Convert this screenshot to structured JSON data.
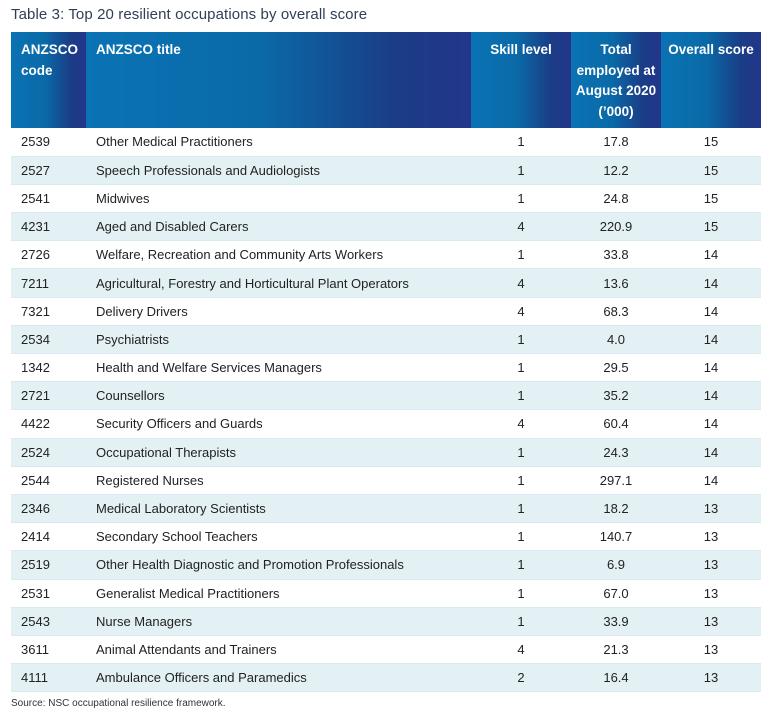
{
  "title": "Table 3: Top 20 resilient occupations by overall score",
  "headers": {
    "code": "ANZSCO code",
    "title": "ANZSCO title",
    "skill": "Skill level",
    "employed": "Total employed at August 2020 (’000)",
    "score": "Overall score"
  },
  "rows": [
    {
      "code": "2539",
      "title": "Other Medical Practitioners",
      "skill": "1",
      "employed": "17.8",
      "score": "15"
    },
    {
      "code": "2527",
      "title": "Speech Professionals and Audiologists",
      "skill": "1",
      "employed": "12.2",
      "score": "15"
    },
    {
      "code": "2541",
      "title": "Midwives",
      "skill": "1",
      "employed": "24.8",
      "score": "15"
    },
    {
      "code": "4231",
      "title": "Aged and Disabled Carers",
      "skill": "4",
      "employed": "220.9",
      "score": "15"
    },
    {
      "code": "2726",
      "title": "Welfare, Recreation and Community Arts Workers",
      "skill": "1",
      "employed": "33.8",
      "score": "14"
    },
    {
      "code": "7211",
      "title": "Agricultural, Forestry and Horticultural Plant Operators",
      "skill": "4",
      "employed": "13.6",
      "score": "14"
    },
    {
      "code": "7321",
      "title": "Delivery Drivers",
      "skill": "4",
      "employed": "68.3",
      "score": "14"
    },
    {
      "code": "2534",
      "title": "Psychiatrists",
      "skill": "1",
      "employed": "4.0",
      "score": "14"
    },
    {
      "code": "1342",
      "title": "Health and Welfare Services Managers",
      "skill": "1",
      "employed": "29.5",
      "score": "14"
    },
    {
      "code": "2721",
      "title": "Counsellors",
      "skill": "1",
      "employed": "35.2",
      "score": "14"
    },
    {
      "code": "4422",
      "title": "Security Officers and Guards",
      "skill": "4",
      "employed": "60.4",
      "score": "14"
    },
    {
      "code": "2524",
      "title": "Occupational Therapists",
      "skill": "1",
      "employed": "24.3",
      "score": "14"
    },
    {
      "code": "2544",
      "title": "Registered Nurses",
      "skill": "1",
      "employed": "297.1",
      "score": "14"
    },
    {
      "code": "2346",
      "title": "Medical Laboratory Scientists",
      "skill": "1",
      "employed": "18.2",
      "score": "13"
    },
    {
      "code": "2414",
      "title": "Secondary School Teachers",
      "skill": "1",
      "employed": "140.7",
      "score": "13"
    },
    {
      "code": "2519",
      "title": "Other Health Diagnostic and Promotion Professionals",
      "skill": "1",
      "employed": "6.9",
      "score": "13"
    },
    {
      "code": "2531",
      "title": "Generalist Medical Practitioners",
      "skill": "1",
      "employed": "67.0",
      "score": "13"
    },
    {
      "code": "2543",
      "title": "Nurse Managers",
      "skill": "1",
      "employed": "33.9",
      "score": "13"
    },
    {
      "code": "3611",
      "title": "Animal Attendants and Trainers",
      "skill": "4",
      "employed": "21.3",
      "score": "13"
    },
    {
      "code": "4111",
      "title": "Ambulance Officers and Paramedics",
      "skill": "2",
      "employed": "16.4",
      "score": "13"
    }
  ],
  "source": "Source:  NSC occupational resilience framework."
}
